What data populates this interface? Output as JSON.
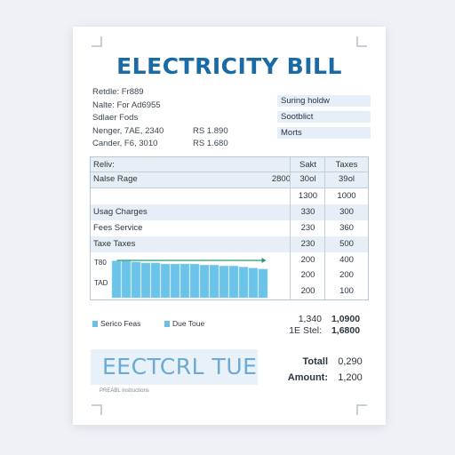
{
  "title": "ELECTRICITY BILL",
  "info": {
    "lines": [
      "Retdle: Fr889",
      "Nalte: For Ad6955",
      "Sdlaer Fods",
      "Nenger, 7AE, 2340",
      "Cander, F6, 3010"
    ],
    "amounts": [
      "RS 1.890",
      "RS 1.680"
    ]
  },
  "side_boxes": [
    "Suring holdw",
    "Sootblict",
    "Morts"
  ],
  "table": {
    "header": [
      "Reliv:",
      "",
      "Sakt",
      "Taxes"
    ],
    "rows": [
      {
        "label": "Nalse Rage",
        "val": "2800",
        "a": "30ol",
        "b": "39ol"
      },
      {
        "label": "",
        "val": "",
        "a": "1300",
        "b": "1000"
      },
      {
        "label": "Usag Charges",
        "val": "",
        "a": "330",
        "b": "300"
      },
      {
        "label": "Fees  Service",
        "val": "",
        "a": "230",
        "b": "360"
      },
      {
        "label": "Taxe  Taxes",
        "val": "",
        "a": "230",
        "b": "500"
      },
      {
        "label": "",
        "val": "",
        "a": "200",
        "b": "400"
      },
      {
        "label": "",
        "val": "",
        "a": "200",
        "b": "200"
      },
      {
        "label": "",
        "val": "",
        "a": "200",
        "b": "100"
      }
    ],
    "chart_axis_labels": [
      "T80",
      "TAD"
    ]
  },
  "chart_data": {
    "type": "bar",
    "categories": [
      "",
      "",
      "",
      "",
      "",
      "",
      "",
      "",
      "",
      "",
      "",
      "",
      "",
      "",
      "",
      ""
    ],
    "values": [
      36,
      36,
      35,
      34,
      34,
      33,
      33,
      33,
      33,
      32,
      32,
      31,
      31,
      30,
      29,
      28
    ],
    "trend": [
      40,
      39,
      38,
      38,
      37,
      36,
      36,
      36,
      35,
      35,
      34,
      34,
      33,
      33,
      32,
      32
    ],
    "trend_color": "#2a9a6a",
    "bar_color": "#6cc3ea"
  },
  "legend": [
    "Serico Feas",
    "Due Toue"
  ],
  "subtotals": [
    {
      "value": "1,340",
      "wvalue": "1,0900"
    },
    {
      "value": "1E Stel:",
      "wvalue": "1,6800"
    }
  ],
  "stamp_text": "EECTCRL TUE",
  "totals": [
    {
      "label": "Totall",
      "value": "0,290"
    },
    {
      "label": "Amount:",
      "value": "1,200"
    }
  ],
  "footer": "PREABL Instructions"
}
